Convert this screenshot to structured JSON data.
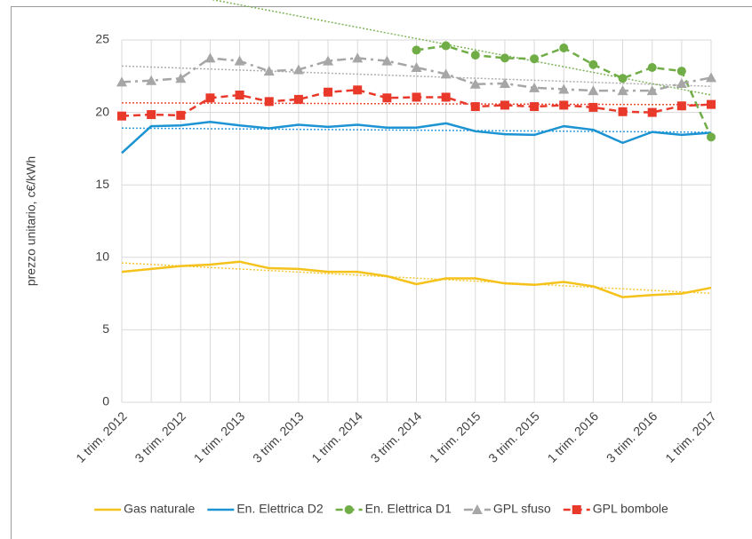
{
  "chart_data": {
    "type": "line",
    "y_label": "prezzo unitario, c€/kWh",
    "categories": [
      "1 trim. 2012",
      null,
      "3 trim. 2012",
      null,
      "1 trim. 2013",
      null,
      "3 trim. 2013",
      null,
      "1 trim. 2014",
      null,
      "3 trim. 2014",
      null,
      "1 trim. 2015",
      null,
      "3 trim. 2015",
      null,
      "1 trim. 2016",
      null,
      "3 trim. 2016",
      null,
      "1 trim. 2017"
    ],
    "ylim": [
      0,
      25
    ],
    "yticks": [
      0,
      5,
      10,
      15,
      20,
      25
    ],
    "grid": true,
    "trendlines": true,
    "legend": "bottom",
    "series": [
      {
        "name": "Gas naturale",
        "color": "#f5c21b",
        "marker": "none",
        "dash": "solid",
        "values": [
          9.0,
          9.2,
          9.4,
          9.5,
          9.7,
          9.25,
          9.2,
          9.0,
          9.0,
          8.7,
          8.15,
          8.55,
          8.55,
          8.2,
          8.1,
          8.3,
          8.0,
          7.25,
          7.4,
          7.5,
          7.9
        ]
      },
      {
        "name": "En. Elettrica D2",
        "color": "#1c93d2",
        "marker": "none",
        "dash": "solid",
        "values": [
          17.2,
          19.05,
          19.1,
          19.35,
          19.1,
          18.9,
          19.15,
          19.0,
          19.15,
          18.95,
          18.95,
          19.25,
          18.7,
          18.5,
          18.45,
          19.05,
          18.8,
          17.9,
          18.65,
          18.45,
          18.6
        ]
      },
      {
        "name": "En. Elettrica D1",
        "color": "#70ad47",
        "marker": "circle",
        "dash": "dash",
        "values": [
          null,
          null,
          null,
          null,
          null,
          null,
          null,
          null,
          null,
          null,
          24.3,
          24.6,
          23.95,
          23.75,
          23.7,
          24.45,
          23.3,
          22.35,
          23.1,
          22.85,
          18.3
        ]
      },
      {
        "name": "GPL sfuso",
        "color": "#a6a6a6",
        "marker": "triangle",
        "dash": "dashdot",
        "values": [
          22.1,
          22.2,
          22.35,
          23.75,
          23.55,
          22.85,
          22.95,
          23.55,
          23.75,
          23.55,
          23.1,
          22.65,
          21.95,
          22.0,
          21.7,
          21.6,
          21.5,
          21.5,
          21.5,
          22.0,
          22.4
        ]
      },
      {
        "name": "GPL bombole",
        "color": "#e8392a",
        "marker": "square",
        "dash": "dash",
        "values": [
          19.75,
          19.85,
          19.8,
          21.0,
          21.2,
          20.75,
          20.9,
          21.4,
          21.55,
          21.0,
          21.05,
          21.05,
          20.4,
          20.5,
          20.4,
          20.5,
          20.35,
          20.05,
          20.0,
          20.45,
          20.55
        ]
      }
    ]
  }
}
